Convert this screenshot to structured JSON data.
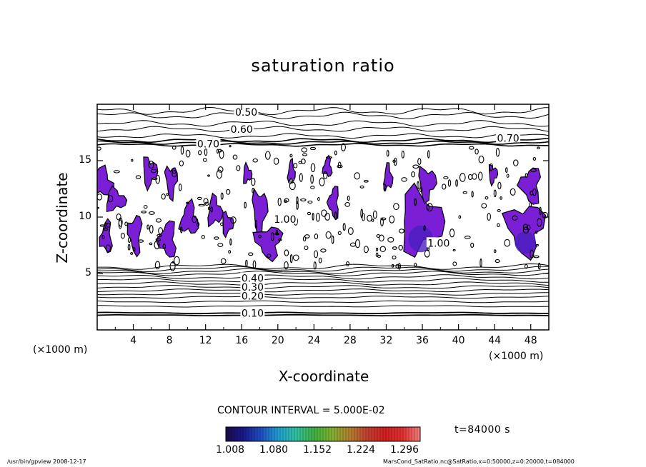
{
  "chart_data": {
    "type": "contour",
    "title": "saturation ratio",
    "xlabel": "X-coordinate",
    "ylabel": "Z-coordinate",
    "x_unit": "(×1000 m)",
    "y_unit": "(×1000 m)",
    "xlim": [
      0,
      50
    ],
    "ylim": [
      0,
      20
    ],
    "x_ticks": [
      "4",
      "8",
      "12",
      "16",
      "20",
      "24",
      "28",
      "32",
      "36",
      "40",
      "44",
      "48"
    ],
    "y_ticks": [
      "5",
      "10",
      "15"
    ],
    "contour_labels": [
      {
        "text": "0.50",
        "x": 16.5,
        "y": 19.3
      },
      {
        "text": "0.60",
        "x": 16.0,
        "y": 17.8
      },
      {
        "text": "0.70",
        "x": 12.3,
        "y": 16.5
      },
      {
        "text": "0.70",
        "x": 45.5,
        "y": 17.0
      },
      {
        "text": "0.10",
        "x": 17.2,
        "y": 1.5
      },
      {
        "text": "0.20",
        "x": 17.2,
        "y": 3.0
      },
      {
        "text": "0.30",
        "x": 17.2,
        "y": 3.8
      },
      {
        "text": "0.40",
        "x": 17.2,
        "y": 4.6
      },
      {
        "text": "1.00",
        "x": 20.8,
        "y": 9.8
      },
      {
        "text": "1.00",
        "x": 37.8,
        "y": 7.7
      }
    ],
    "contour_interval_text": "CONTOUR INTERVAL = 5.000E-02",
    "colorbar_ticks": [
      "1.008",
      "1.080",
      "1.152",
      "1.224",
      "1.296"
    ],
    "colorbar_colors": [
      "#1a0a4a",
      "#1a1a8c",
      "#2050c0",
      "#20a0d0",
      "#30c0a0",
      "#40b040",
      "#80b030",
      "#b08030",
      "#c04030",
      "#d02020",
      "#e03030",
      "#f08080"
    ],
    "fill_color": "#7b1fd6",
    "fill_color_deep": "#4a1fbf",
    "shaded_regions": [
      {
        "x": 0.5,
        "y": 13,
        "rx": 1.6,
        "ry": 1.6
      },
      {
        "x": 2.0,
        "y": 11.5,
        "rx": 1.4,
        "ry": 1.2
      },
      {
        "x": 5.8,
        "y": 14,
        "rx": 1.0,
        "ry": 1.6
      },
      {
        "x": 8.2,
        "y": 13.2,
        "rx": 0.8,
        "ry": 1.8
      },
      {
        "x": 4.2,
        "y": 8.5,
        "rx": 0.9,
        "ry": 2.2
      },
      {
        "x": 7.8,
        "y": 8.0,
        "rx": 1.2,
        "ry": 2.0
      },
      {
        "x": 10.2,
        "y": 9.8,
        "rx": 1.2,
        "ry": 1.8
      },
      {
        "x": 13.0,
        "y": 10.5,
        "rx": 1.0,
        "ry": 1.6
      },
      {
        "x": 14.4,
        "y": 9.4,
        "rx": 0.8,
        "ry": 1.2
      },
      {
        "x": 18.0,
        "y": 10.5,
        "rx": 1.0,
        "ry": 2.5
      },
      {
        "x": 19.0,
        "y": 7.8,
        "rx": 1.8,
        "ry": 1.8
      },
      {
        "x": 26.2,
        "y": 11.3,
        "rx": 0.7,
        "ry": 1.8
      },
      {
        "x": 25.5,
        "y": 14.4,
        "rx": 0.6,
        "ry": 1.1
      },
      {
        "x": 32.2,
        "y": 13.5,
        "rx": 0.6,
        "ry": 1.4
      },
      {
        "x": 35.8,
        "y": 9.6,
        "rx": 3.0,
        "ry": 3.4
      },
      {
        "x": 36.5,
        "y": 13.0,
        "rx": 1.2,
        "ry": 1.8
      },
      {
        "x": 47.4,
        "y": 9.0,
        "rx": 2.6,
        "ry": 2.8
      },
      {
        "x": 48.0,
        "y": 12.8,
        "rx": 1.4,
        "ry": 2.0
      },
      {
        "x": 1.0,
        "y": 8.2,
        "rx": 0.8,
        "ry": 1.8
      },
      {
        "x": 21.5,
        "y": 14.0,
        "rx": 0.5,
        "ry": 1.2
      },
      {
        "x": 16.6,
        "y": 13.8,
        "rx": 0.6,
        "ry": 1.0
      },
      {
        "x": 43.8,
        "y": 13.8,
        "rx": 0.6,
        "ry": 1.0
      }
    ],
    "legend": "colorbar-bottom"
  },
  "time_label": "t=84000 s",
  "footer_left": "/usr/bin/gpview   2008-12-17",
  "footer_right": "MarsCond_SatRatio.nc@SatRatio,x=0:50000,z=0:20000,t=084000"
}
